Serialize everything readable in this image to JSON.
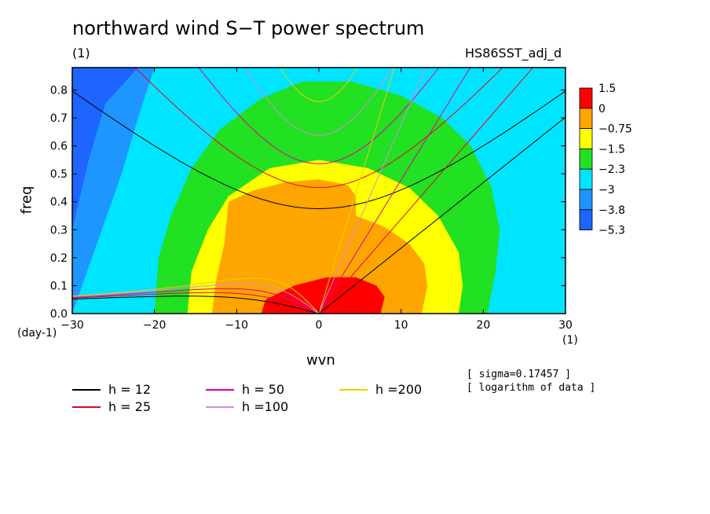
{
  "title": "northward wind S−T power spectrum",
  "subtitle_left": "(1)",
  "subtitle_right": "HS86SST_adj_d",
  "notes": [
    "[ sigma=0.17457 ]",
    "[ logarithm of data ]"
  ],
  "colors": {
    "blue_dark": "#1e64ff",
    "blue": "#1e96ff",
    "cyan": "#00e5ff",
    "green": "#22e022",
    "yellow": "#ffff00",
    "orange": "#ffa500",
    "red": "#ff0000",
    "h12": "#000000",
    "h25": "#e8002a",
    "h50": "#e0009a",
    "h100": "#d88ae6",
    "h200": "#e8d200"
  },
  "chart_data": {
    "type": "heatmap",
    "title": "northward wind S−T power spectrum",
    "xlabel": "wvn",
    "ylabel": "freq",
    "x_unit": "(1)",
    "y_unit": "(day-1)",
    "xlim": [
      -30,
      30
    ],
    "ylim": [
      0,
      0.88
    ],
    "xticks": [
      -30,
      -20,
      -10,
      0,
      10,
      20,
      30
    ],
    "yticks": [
      0.0,
      0.1,
      0.2,
      0.3,
      0.4,
      0.5,
      0.6,
      0.7,
      0.8
    ],
    "colorbar": {
      "labels": [
        "1.5",
        "0",
        "−0.75",
        "−1.5",
        "−2.3",
        "−3",
        "−3.8",
        "−5.3"
      ],
      "colors": [
        "#ff0000",
        "#ffa500",
        "#ffff00",
        "#22e022",
        "#00e5ff",
        "#1e96ff",
        "#1e64ff"
      ]
    },
    "series": [
      {
        "name": "h = 12",
        "h": 12
      },
      {
        "name": "h = 25",
        "h": 25
      },
      {
        "name": "h = 50",
        "h": 50
      },
      {
        "name": "h =100",
        "h": 100
      },
      {
        "name": "h =200",
        "h": 200
      }
    ],
    "legend_position": "bottom-left"
  }
}
